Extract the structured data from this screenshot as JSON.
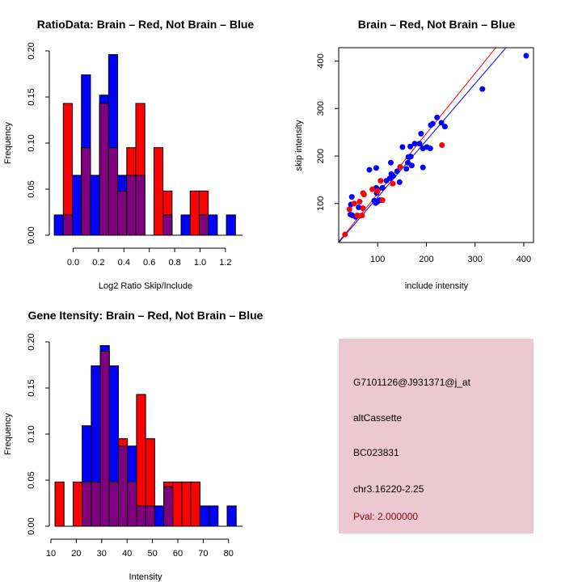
{
  "colors": {
    "brain": "#ff0000",
    "not_brain": "#0000ff",
    "overlap": "#800080",
    "info_panel": "#eec7d0",
    "pval_text": "#8b0000"
  },
  "chart_data": [
    {
      "type": "bar",
      "subtype": "overlaid-histogram",
      "title": "RatioData: Brain – Red, Not Brain – Blue",
      "xlabel": "Log2 Ratio Skip/Include",
      "ylabel": "Frequency",
      "xlim": [
        -0.15,
        1.3
      ],
      "ylim": [
        0,
        0.2
      ],
      "xticks": [
        0.0,
        0.2,
        0.4,
        0.6,
        0.8,
        1.0,
        1.2
      ],
      "xtick_labels": [
        "0.0",
        "0.2",
        "0.4",
        "0.6",
        "0.8",
        "1.0",
        "1.2"
      ],
      "yticks": [
        0.0,
        0.05,
        0.1,
        0.15,
        0.2
      ],
      "ytick_labels": [
        "0.00",
        "0.05",
        "0.10",
        "0.15",
        "0.20"
      ],
      "bin_start": -0.149,
      "bin_width": 0.0714,
      "series": [
        {
          "name": "Not Brain",
          "color": "blue",
          "values": [
            0.022,
            0.022,
            0.065,
            0.174,
            0.065,
            0.152,
            0.196,
            0.065,
            0.065,
            0.065,
            0,
            0,
            0.022,
            0,
            0.022,
            0,
            0.022,
            0.022,
            0,
            0.022
          ]
        },
        {
          "name": "Brain",
          "color": "red",
          "values": [
            0,
            0.143,
            0,
            0.095,
            0,
            0.143,
            0.095,
            0.048,
            0.095,
            0.143,
            0,
            0.095,
            0.048,
            0,
            0,
            0.048,
            0.048,
            0,
            0,
            0
          ]
        }
      ]
    },
    {
      "type": "scatter",
      "title": "Brain – Red, Not Brain – Blue",
      "xlabel": "include intensity",
      "ylabel": "skip intensity",
      "xlim": [
        20,
        420
      ],
      "ylim": [
        18,
        428
      ],
      "xticks": [
        100,
        200,
        300,
        400
      ],
      "xtick_labels": [
        "100",
        "200",
        "300",
        "400"
      ],
      "yticks": [
        100,
        200,
        300,
        400
      ],
      "ytick_labels": [
        "100",
        "200",
        "300",
        "400"
      ],
      "series": [
        {
          "name": "Not Brain",
          "color": "blue",
          "points": [
            [
              405,
              411
            ],
            [
              315,
              341
            ],
            [
              222,
              281
            ],
            [
              231,
              270
            ],
            [
              238,
              262
            ],
            [
              209,
              265
            ],
            [
              213,
              268
            ],
            [
              189,
              247
            ],
            [
              176,
              226
            ],
            [
              186,
              226
            ],
            [
              167,
              220
            ],
            [
              151,
              219
            ],
            [
              193,
              216
            ],
            [
              201,
              219
            ],
            [
              208,
              216
            ],
            [
              163,
              198
            ],
            [
              168,
              199
            ],
            [
              159,
              173
            ],
            [
              162,
              186
            ],
            [
              170,
              180
            ],
            [
              193,
              176
            ],
            [
              145,
              145
            ],
            [
              127,
              186
            ],
            [
              97,
              175
            ],
            [
              83,
              171
            ],
            [
              140,
              168
            ],
            [
              128,
              162
            ],
            [
              132,
              158
            ],
            [
              125,
              153
            ],
            [
              118,
              148
            ],
            [
              110,
              133
            ],
            [
              97,
              133
            ],
            [
              100,
              130
            ],
            [
              98,
              122
            ],
            [
              93,
              106
            ],
            [
              96,
              101
            ],
            [
              104,
              107
            ],
            [
              107,
              107
            ],
            [
              100,
              104
            ],
            [
              61,
              92
            ],
            [
              45,
              98
            ],
            [
              47,
              114
            ],
            [
              44,
              77
            ],
            [
              48,
              75
            ],
            [
              55,
              72
            ]
          ]
        },
        {
          "name": "Brain",
          "color": "red",
          "points": [
            [
              232,
              223
            ],
            [
              146,
              177
            ],
            [
              106,
              148
            ],
            [
              131,
              142
            ],
            [
              89,
              130
            ],
            [
              100,
              126
            ],
            [
              70,
              122
            ],
            [
              72,
              119
            ],
            [
              110,
              107
            ],
            [
              63,
              104
            ],
            [
              52,
              100
            ],
            [
              42,
              88
            ],
            [
              70,
              90
            ],
            [
              68,
              75
            ],
            [
              58,
              75
            ],
            [
              63,
              74
            ],
            [
              33,
              35
            ]
          ]
        }
      ],
      "fit_lines": [
        {
          "name": "Brain fit",
          "color": "red",
          "intercept": -5.8,
          "slope": 1.266
        },
        {
          "name": "Not Brain fit",
          "color": "blue",
          "intercept": -6.0,
          "slope": 1.194
        }
      ]
    },
    {
      "type": "bar",
      "subtype": "overlaid-histogram",
      "title": "Gene Itensity: Brain – Red, Not Brain – Blue",
      "xlabel": "Intensity",
      "ylabel": "Frequency",
      "xlim": [
        10,
        85
      ],
      "ylim": [
        0,
        0.2
      ],
      "xticks": [
        10,
        20,
        30,
        40,
        50,
        60,
        70,
        80
      ],
      "xtick_labels": [
        "10",
        "20",
        "30",
        "40",
        "50",
        "60",
        "70",
        "80"
      ],
      "yticks": [
        0.0,
        0.05,
        0.1,
        0.15,
        0.2
      ],
      "ytick_labels": [
        "0.00",
        "0.05",
        "0.10",
        "0.15",
        "0.20"
      ],
      "bin_start": 11.6,
      "bin_width": 3.57,
      "series": [
        {
          "name": "Not Brain",
          "color": "blue",
          "values": [
            0,
            0,
            0,
            0.109,
            0.174,
            0.196,
            0.174,
            0.087,
            0.087,
            0.022,
            0.022,
            0.022,
            0.043,
            0,
            0,
            0,
            0.022,
            0.022,
            0,
            0.022
          ]
        },
        {
          "name": "Brain",
          "color": "red",
          "values": [
            0.048,
            0,
            0.048,
            0.048,
            0.048,
            0.19,
            0.048,
            0.095,
            0.048,
            0.143,
            0.095,
            0,
            0.048,
            0.048,
            0.048,
            0.048,
            0,
            0,
            0,
            0
          ]
        }
      ]
    }
  ],
  "info_panel": {
    "lines": [
      "G7101126@J931371@j_at",
      "altCassette",
      "BC023831",
      "chr3.16220-2.25"
    ],
    "pval": "Pval: 2.000000"
  }
}
